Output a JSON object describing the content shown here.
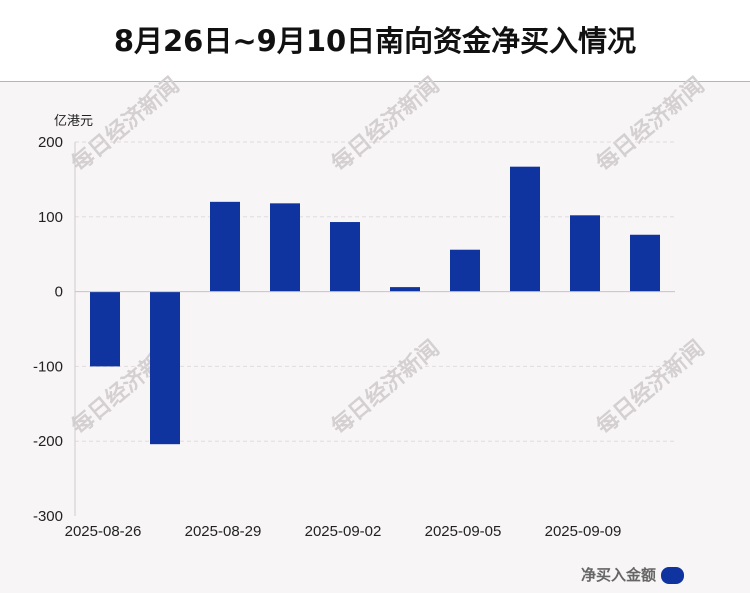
{
  "title": "8月26日~9月10日南向资金净买入情况",
  "watermark": "每日经济新闻",
  "colors": {
    "bar": "#0f34a0",
    "axis_text": "#222222",
    "grid": "#e1dcdf",
    "title_text": "#111111"
  },
  "chart_data": {
    "type": "bar",
    "title": "8月26日~9月10日南向资金净买入情况",
    "ylabel": "亿港元",
    "xlabel": "",
    "ylim": [
      -300,
      200
    ],
    "yticks": [
      200,
      100,
      0,
      -100,
      -200,
      -300
    ],
    "grid": true,
    "legend_position": "bottom-right",
    "x_tick_labels": [
      "2025-08-26",
      "2025-08-29",
      "2025-09-02",
      "2025-09-05",
      "2025-09-09"
    ],
    "categories": [
      "2025-08-26",
      "2025-08-27",
      "2025-08-29",
      "2025-09-01",
      "2025-09-02",
      "2025-09-03",
      "2025-09-05",
      "2025-09-08",
      "2025-09-09",
      "2025-09-10"
    ],
    "series": [
      {
        "name": "净买入金额",
        "values": [
          -100,
          -204,
          120,
          118,
          93,
          6,
          56,
          167,
          102,
          76
        ]
      }
    ]
  }
}
